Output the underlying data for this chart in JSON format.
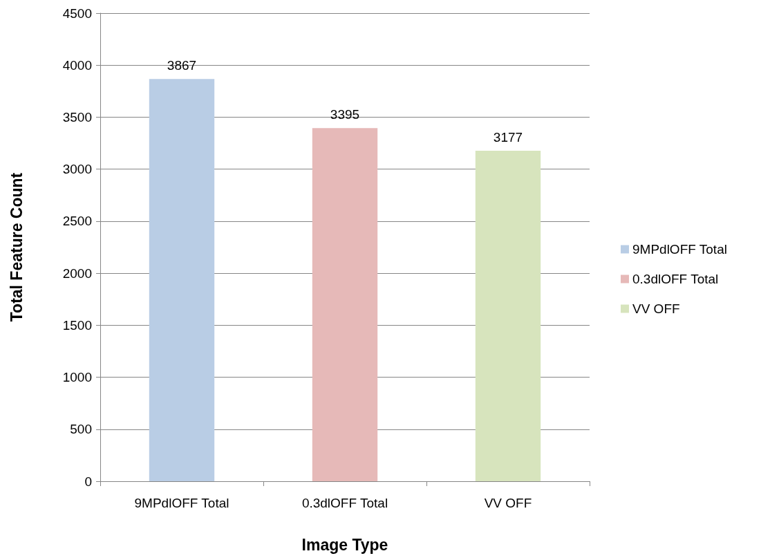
{
  "chart_data": {
    "type": "bar",
    "xlabel": "Image Type",
    "ylabel": "Total Feature Count",
    "categories": [
      "9MPdlOFF Total",
      "0.3dlOFF Total",
      "VV OFF"
    ],
    "series": [
      {
        "name": "9MPdlOFF Total",
        "color": "#b9cde5",
        "values": [
          3867,
          null,
          null
        ]
      },
      {
        "name": "0.3dlOFF Total",
        "color": "#e6b9b8",
        "values": [
          null,
          3395,
          null
        ]
      },
      {
        "name": "VV OFF",
        "color": "#d7e4bd",
        "values": [
          null,
          null,
          3177
        ]
      }
    ],
    "ylim": [
      0,
      4500
    ],
    "yticks": [
      0,
      500,
      1000,
      1500,
      2000,
      2500,
      3000,
      3500,
      4000,
      4500
    ],
    "grid": "y",
    "legend": "right",
    "data_labels": true
  }
}
